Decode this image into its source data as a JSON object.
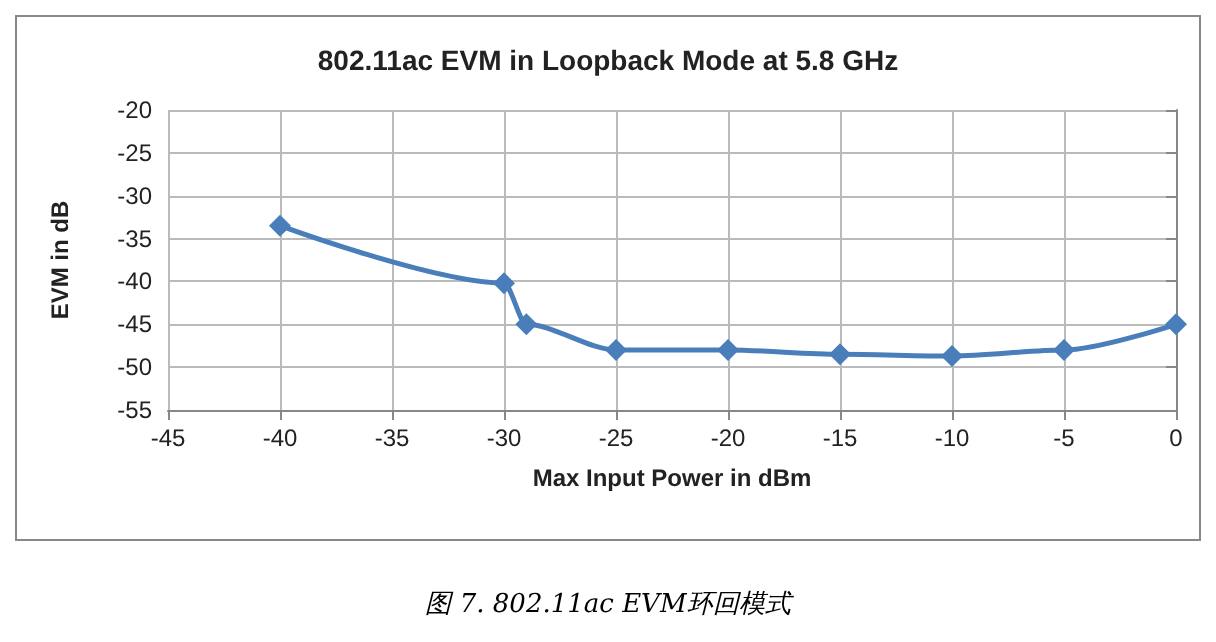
{
  "chart_data": {
    "type": "line",
    "title": "802.11ac EVM in Loopback Mode at 5.8 GHz",
    "xlabel": "Max Input Power in dBm",
    "ylabel": "EVM in dB",
    "x": [
      -40,
      -30,
      -29,
      -25,
      -20,
      -15,
      -10,
      -5,
      0
    ],
    "series": [
      {
        "color": "#4a7ebb",
        "values": [
          -33.5,
          -40.2,
          -45,
          -48,
          -48,
          -48.5,
          -48.7,
          -48,
          -45
        ]
      }
    ],
    "xlim": [
      -45,
      0
    ],
    "xticks": [
      -45,
      -40,
      -35,
      -30,
      -25,
      -20,
      -15,
      -10,
      -5,
      0
    ],
    "ylim": [
      -55,
      -20
    ],
    "yticks": [
      -55,
      -50,
      -45,
      -40,
      -35,
      -30,
      -25,
      -20
    ],
    "grid": true,
    "marker": "diamond",
    "line_style": "solid",
    "annotations": [
      "图 7. 802.11ac EVM环回模式"
    ]
  }
}
